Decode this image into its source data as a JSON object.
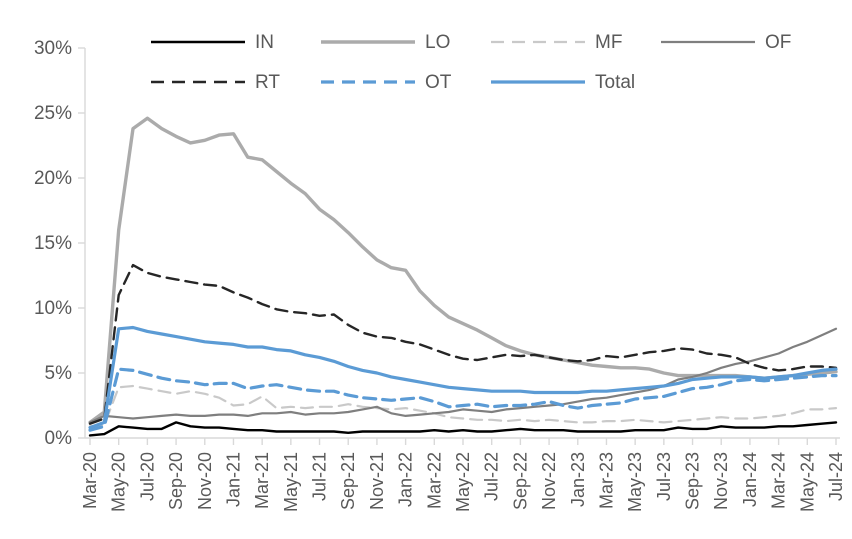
{
  "chart_data": {
    "type": "line",
    "title": "",
    "xlabel": "",
    "ylabel": "",
    "ylim": [
      0,
      30
    ],
    "grid": false,
    "legend_position": "top",
    "axis_color": "#d9d9d9",
    "label_color": "#595959",
    "y_tick_labels": [
      "0%",
      "5%",
      "10%",
      "15%",
      "20%",
      "25%",
      "30%"
    ],
    "y_tick_values": [
      0,
      5,
      10,
      15,
      20,
      25,
      30
    ],
    "x_tick_every": 2,
    "x": [
      "Mar-20",
      "Apr-20",
      "May-20",
      "Jun-20",
      "Jul-20",
      "Aug-20",
      "Sep-20",
      "Oct-20",
      "Nov-20",
      "Dec-20",
      "Jan-21",
      "Feb-21",
      "Mar-21",
      "Apr-21",
      "May-21",
      "Jun-21",
      "Jul-21",
      "Aug-21",
      "Sep-21",
      "Oct-21",
      "Nov-21",
      "Dec-21",
      "Jan-22",
      "Feb-22",
      "Mar-22",
      "Apr-22",
      "May-22",
      "Jun-22",
      "Jul-22",
      "Aug-22",
      "Sep-22",
      "Oct-22",
      "Nov-22",
      "Dec-22",
      "Jan-23",
      "Feb-23",
      "Mar-23",
      "Apr-23",
      "May-23",
      "Jun-23",
      "Jul-23",
      "Aug-23",
      "Sep-23",
      "Oct-23",
      "Nov-23",
      "Dec-23",
      "Jan-24",
      "Feb-24",
      "Mar-24",
      "Apr-24",
      "May-24",
      "Jun-24",
      "Jul-24"
    ],
    "series": [
      {
        "name": "IN",
        "color": "#000000",
        "dash": "solid",
        "width": 2.4,
        "values": [
          0.2,
          0.3,
          0.9,
          0.8,
          0.7,
          0.7,
          1.2,
          0.9,
          0.8,
          0.8,
          0.7,
          0.6,
          0.6,
          0.5,
          0.5,
          0.5,
          0.5,
          0.5,
          0.4,
          0.5,
          0.5,
          0.5,
          0.5,
          0.5,
          0.6,
          0.5,
          0.6,
          0.5,
          0.5,
          0.6,
          0.7,
          0.6,
          0.6,
          0.6,
          0.5,
          0.5,
          0.5,
          0.5,
          0.6,
          0.6,
          0.6,
          0.8,
          0.7,
          0.7,
          0.9,
          0.8,
          0.8,
          0.8,
          0.9,
          0.9,
          1.0,
          1.1,
          1.2
        ]
      },
      {
        "name": "LO",
        "color": "#ababab",
        "dash": "solid",
        "width": 3.4,
        "values": [
          1.2,
          2.0,
          16.0,
          23.8,
          24.6,
          23.8,
          23.2,
          22.7,
          22.9,
          23.3,
          23.4,
          21.6,
          21.4,
          20.5,
          19.6,
          18.8,
          17.6,
          16.8,
          15.8,
          14.7,
          13.7,
          13.1,
          12.9,
          11.3,
          10.2,
          9.3,
          8.8,
          8.3,
          7.7,
          7.1,
          6.7,
          6.4,
          6.2,
          6.0,
          5.8,
          5.6,
          5.5,
          5.4,
          5.4,
          5.3,
          5.0,
          4.8,
          4.8,
          4.8,
          4.8,
          4.8,
          4.7,
          4.6,
          4.7,
          4.8,
          4.9,
          5.0,
          5.1
        ]
      },
      {
        "name": "MF",
        "color": "#c9c9c9",
        "dash": "dashed",
        "width": 2.2,
        "values": [
          0.9,
          1.0,
          3.9,
          4.0,
          3.8,
          3.6,
          3.4,
          3.6,
          3.4,
          3.1,
          2.5,
          2.6,
          3.2,
          2.3,
          2.4,
          2.3,
          2.4,
          2.4,
          2.6,
          2.4,
          2.3,
          2.2,
          2.3,
          2.1,
          1.9,
          1.6,
          1.5,
          1.4,
          1.4,
          1.3,
          1.4,
          1.3,
          1.4,
          1.3,
          1.2,
          1.2,
          1.3,
          1.3,
          1.4,
          1.3,
          1.2,
          1.3,
          1.4,
          1.5,
          1.6,
          1.5,
          1.5,
          1.6,
          1.7,
          1.9,
          2.2,
          2.2,
          2.3
        ]
      },
      {
        "name": "OF",
        "color": "#7f7f7f",
        "dash": "solid",
        "width": 2.2,
        "values": [
          1.2,
          1.7,
          1.6,
          1.5,
          1.6,
          1.7,
          1.8,
          1.7,
          1.7,
          1.8,
          1.8,
          1.7,
          1.9,
          1.9,
          2.0,
          1.8,
          1.9,
          1.9,
          2.0,
          2.2,
          2.4,
          1.9,
          1.7,
          1.8,
          1.9,
          2.0,
          2.2,
          2.1,
          2.0,
          2.2,
          2.3,
          2.4,
          2.5,
          2.6,
          2.8,
          3.0,
          3.1,
          3.3,
          3.5,
          3.7,
          4.0,
          4.5,
          4.7,
          5.0,
          5.4,
          5.7,
          5.9,
          6.2,
          6.5,
          7.0,
          7.4,
          7.9,
          8.4
        ]
      },
      {
        "name": "RT",
        "color": "#262626",
        "dash": "dashed",
        "width": 2.4,
        "values": [
          1.1,
          1.5,
          11.0,
          13.3,
          12.7,
          12.4,
          12.2,
          12.0,
          11.8,
          11.7,
          11.2,
          10.8,
          10.3,
          9.9,
          9.7,
          9.6,
          9.4,
          9.5,
          8.7,
          8.1,
          7.8,
          7.7,
          7.4,
          7.2,
          6.8,
          6.4,
          6.1,
          6.0,
          6.2,
          6.4,
          6.3,
          6.4,
          6.2,
          6.0,
          5.9,
          6.0,
          6.3,
          6.2,
          6.4,
          6.6,
          6.7,
          6.9,
          6.8,
          6.5,
          6.4,
          6.2,
          5.7,
          5.4,
          5.2,
          5.3,
          5.5,
          5.5,
          5.4
        ]
      },
      {
        "name": "OT",
        "color": "#5b9bd5",
        "dash": "dashed",
        "width": 3.2,
        "values": [
          0.6,
          0.9,
          5.3,
          5.2,
          4.9,
          4.6,
          4.4,
          4.3,
          4.1,
          4.2,
          4.2,
          3.8,
          4.0,
          4.1,
          3.9,
          3.7,
          3.6,
          3.6,
          3.3,
          3.1,
          3.0,
          2.9,
          3.0,
          3.1,
          2.8,
          2.4,
          2.5,
          2.6,
          2.4,
          2.5,
          2.5,
          2.6,
          2.8,
          2.5,
          2.3,
          2.5,
          2.6,
          2.7,
          3.0,
          3.1,
          3.2,
          3.5,
          3.8,
          3.9,
          4.1,
          4.4,
          4.5,
          4.4,
          4.5,
          4.6,
          4.7,
          4.8,
          4.8
        ]
      },
      {
        "name": "Total",
        "color": "#5b9bd5",
        "dash": "solid",
        "width": 3.2,
        "values": [
          0.8,
          1.2,
          8.4,
          8.5,
          8.2,
          8.0,
          7.8,
          7.6,
          7.4,
          7.3,
          7.2,
          7.0,
          7.0,
          6.8,
          6.7,
          6.4,
          6.2,
          5.9,
          5.5,
          5.2,
          5.0,
          4.7,
          4.5,
          4.3,
          4.1,
          3.9,
          3.8,
          3.7,
          3.6,
          3.6,
          3.6,
          3.5,
          3.5,
          3.5,
          3.5,
          3.6,
          3.6,
          3.7,
          3.8,
          3.9,
          4.0,
          4.2,
          4.5,
          4.6,
          4.7,
          4.7,
          4.7,
          4.6,
          4.7,
          4.8,
          5.0,
          5.2,
          5.3
        ]
      }
    ]
  }
}
